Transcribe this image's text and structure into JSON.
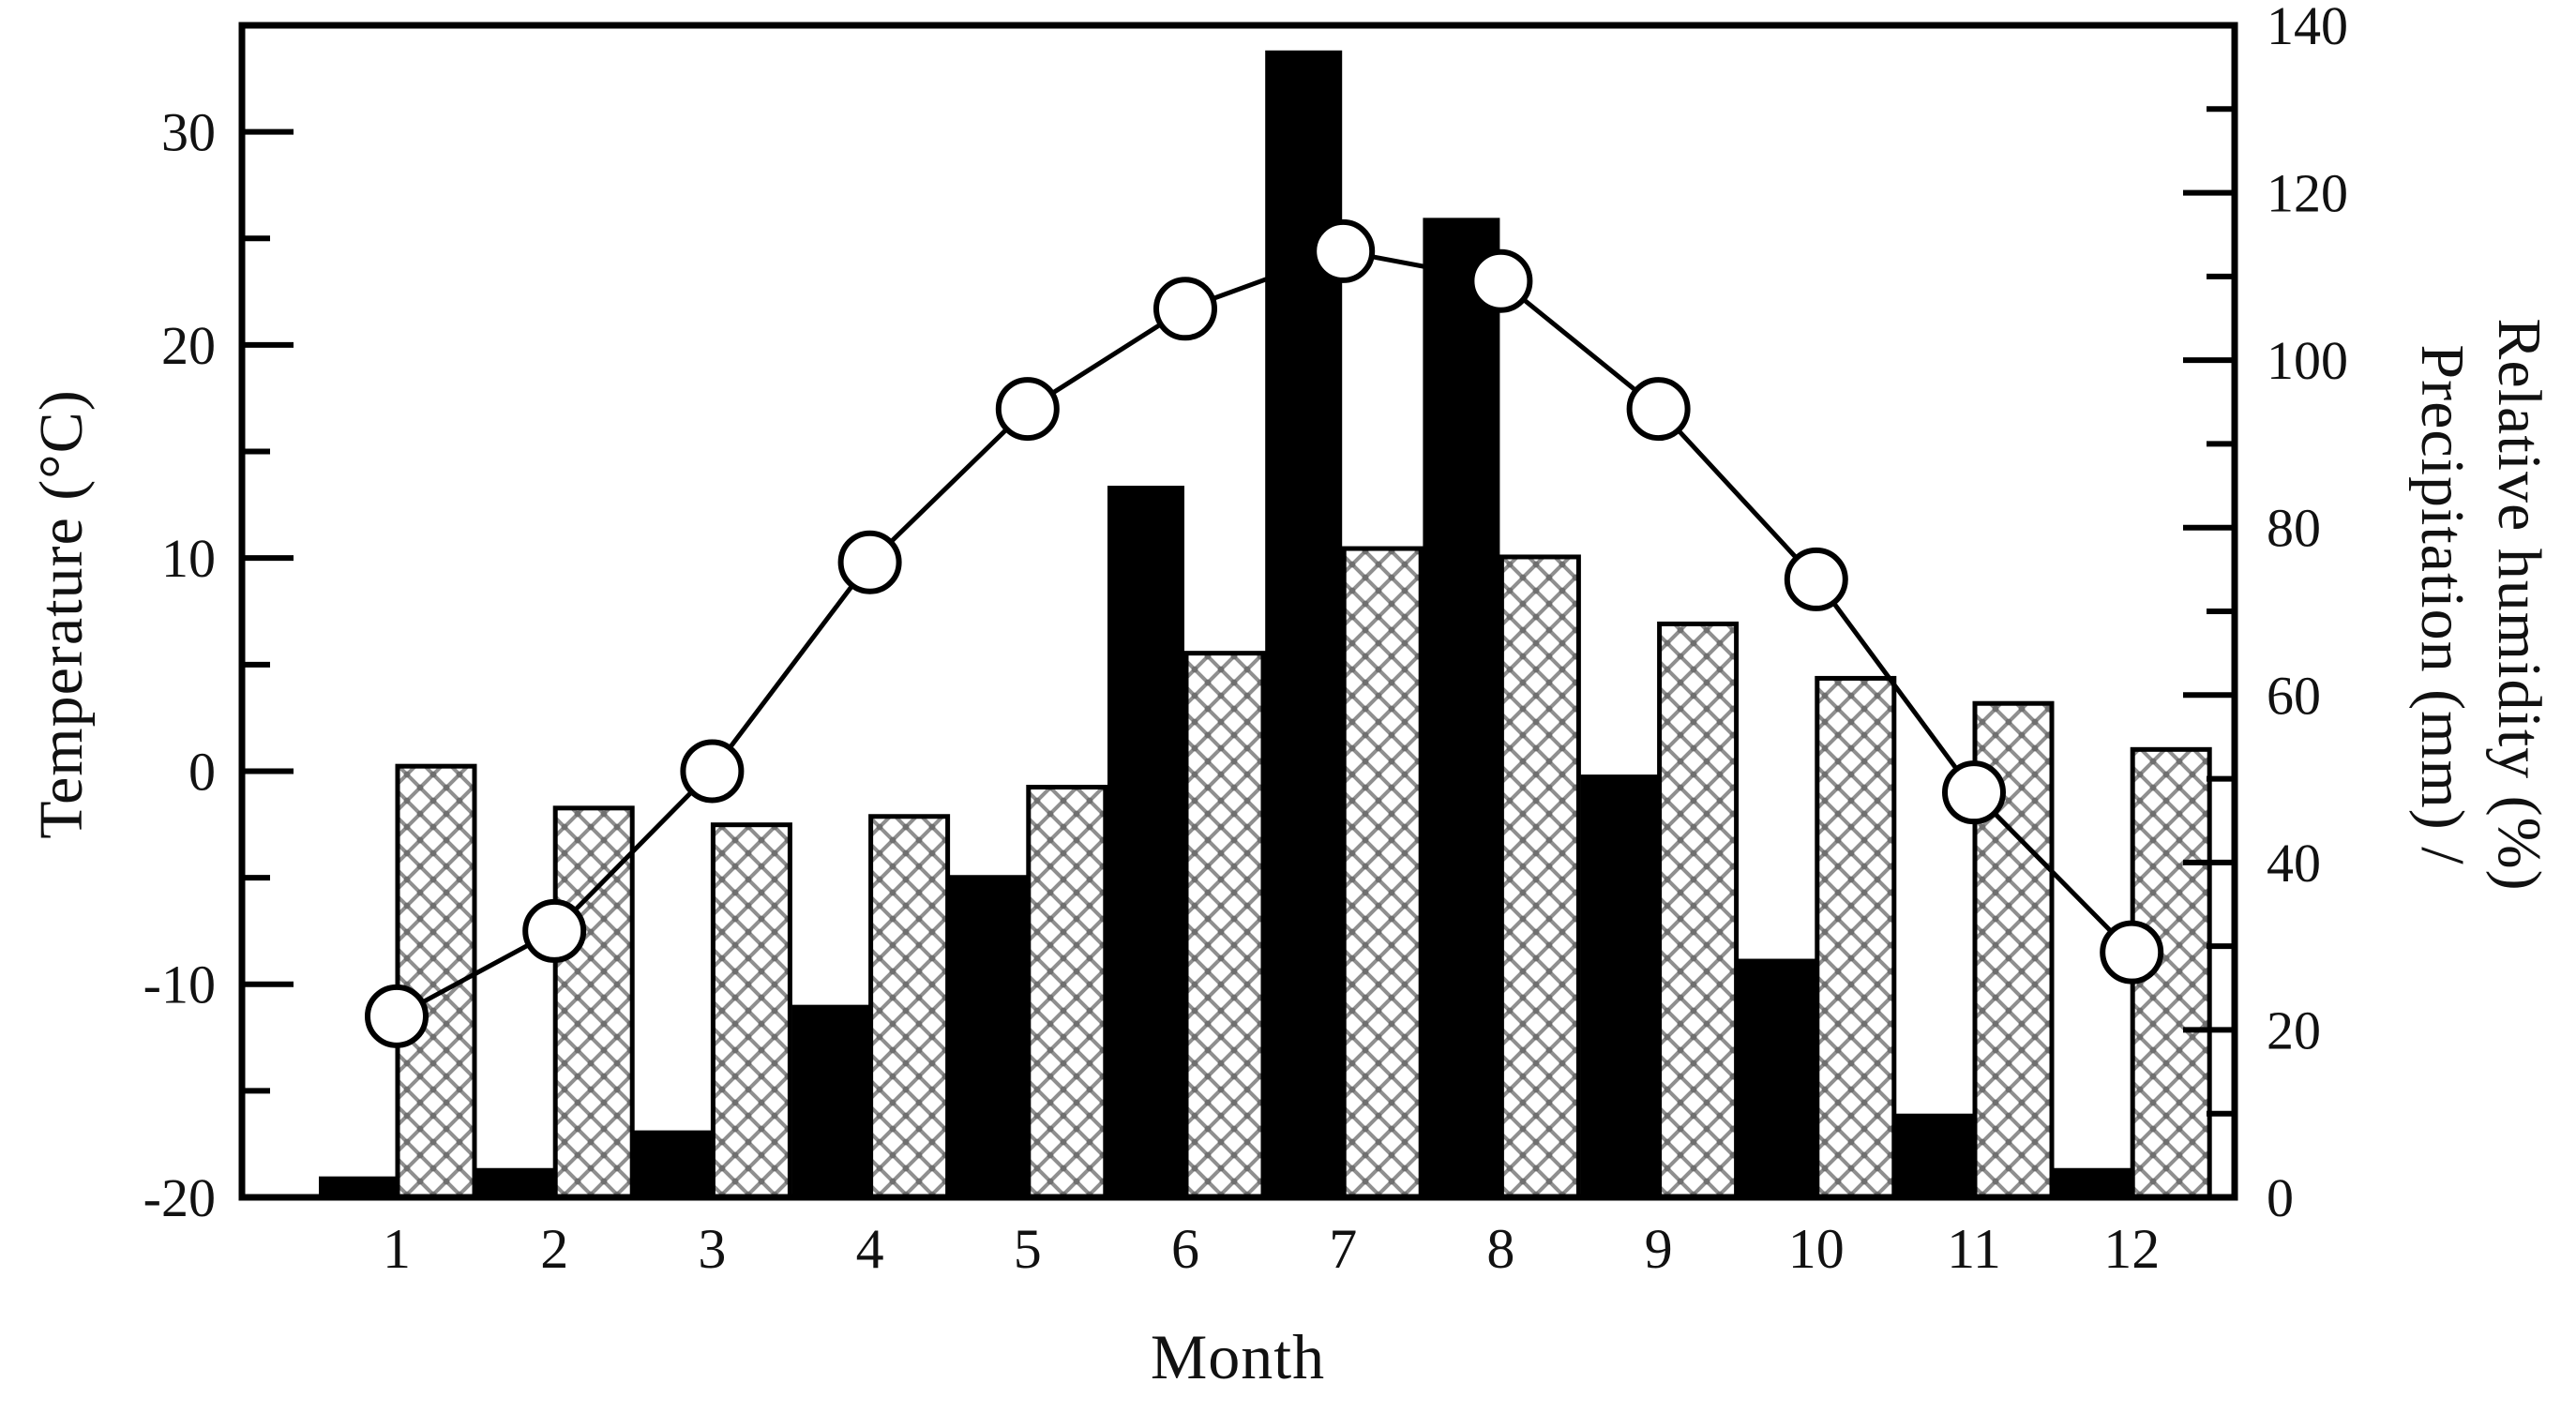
{
  "figure": {
    "kind": "climate-combo-chart",
    "background": "#ffffff",
    "ink_color": "#000000",
    "hatch_color": "#8f8f8f"
  },
  "chart_data": {
    "type": "bar",
    "subtype": "combo-bar-line",
    "categories": [
      "1",
      "2",
      "3",
      "4",
      "5",
      "6",
      "7",
      "8",
      "9",
      "10",
      "11",
      "12"
    ],
    "series": [
      {
        "name": "Precipitation",
        "type": "bar",
        "style": "solid-black",
        "axis": "right",
        "values": [
          2.5,
          3.5,
          8,
          23,
          38.5,
          85,
          137,
          117,
          50.5,
          28.5,
          10,
          3.5
        ]
      },
      {
        "name": "Relative humidity",
        "type": "bar",
        "style": "crosshatch",
        "axis": "right",
        "values": [
          51.5,
          46.5,
          44.5,
          45.5,
          49,
          65,
          77.5,
          76.5,
          68.5,
          62,
          59,
          53.5
        ]
      },
      {
        "name": "Temperature",
        "type": "line",
        "marker": "open-circle",
        "axis": "left",
        "values": [
          -11.5,
          -7.5,
          0,
          9.8,
          17,
          21.7,
          24.4,
          23,
          17,
          9,
          -1,
          -8.5
        ]
      }
    ],
    "left_axis": {
      "label": "Temperature (°C)",
      "min": -20,
      "max": 35,
      "major_tick_values": [
        -20,
        -10,
        0,
        10,
        20,
        30
      ],
      "major_tick_labels": [
        "-20",
        "-10",
        "0",
        "10",
        "20",
        "30"
      ],
      "minor_tick_values": [
        -15,
        -5,
        5,
        15,
        25
      ]
    },
    "right_axis": {
      "label_line1": "Precipitation (mm) /",
      "label_line2": "Relative humidity (%)",
      "min": 0,
      "max": 140,
      "major_tick_values": [
        0,
        20,
        40,
        60,
        80,
        100,
        120,
        140
      ],
      "major_tick_labels": [
        "0",
        "20",
        "40",
        "60",
        "80",
        "100",
        "120",
        "140"
      ],
      "minor_tick_values": [
        10,
        30,
        50,
        70,
        90,
        110,
        130
      ]
    },
    "x_axis": {
      "label": "Month",
      "tick_labels": [
        "1",
        "2",
        "3",
        "4",
        "5",
        "6",
        "7",
        "8",
        "9",
        "10",
        "11",
        "12"
      ]
    },
    "layout": {
      "plot_left": 258,
      "plot_right": 2383,
      "plot_top": 27,
      "plot_bottom": 1277,
      "first_month_center_x": 423,
      "month_spacing": 168.2,
      "bar_half_width": 83,
      "grid": "off",
      "legend": "none",
      "major_tick_len": 55,
      "minor_tick_len": 30,
      "frame_stroke": 7,
      "tick_stroke": 6,
      "line_stroke": 5,
      "marker_radius": 31,
      "marker_stroke": 6,
      "tick_font_size": 58,
      "x_tick_font_size": 60
    }
  }
}
